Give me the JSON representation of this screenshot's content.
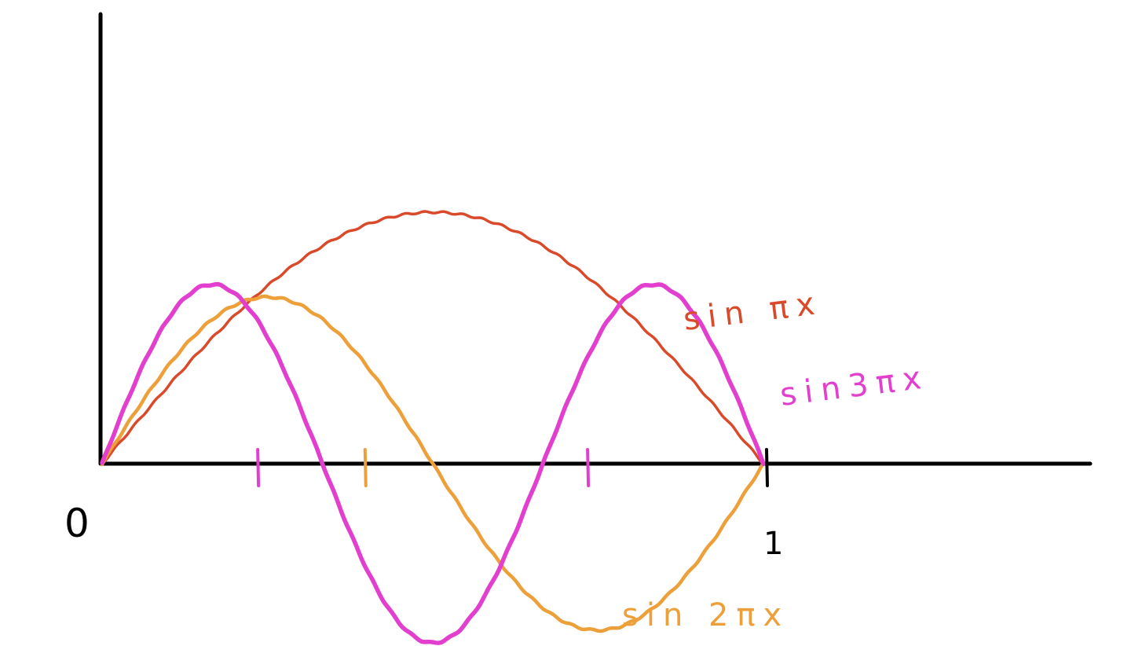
{
  "chart_data": {
    "type": "line",
    "title": "",
    "xlabel": "",
    "ylabel": "",
    "xlim": [
      0,
      1
    ],
    "ylim": [
      -1,
      1
    ],
    "grid": false,
    "legend": "inline labels at right of curves",
    "tick_labels": {
      "x_origin": "0",
      "x_end": "1"
    },
    "series": [
      {
        "name": "sin πx",
        "k": 1,
        "color": "#d94a2b",
        "x": [
          0,
          0.1,
          0.2,
          0.3,
          0.4,
          0.5,
          0.6,
          0.7,
          0.8,
          0.9,
          1.0
        ],
        "y": [
          0,
          0.31,
          0.59,
          0.81,
          0.95,
          1.0,
          0.95,
          0.81,
          0.59,
          0.31,
          0
        ]
      },
      {
        "name": "sin 2πx",
        "k": 2,
        "color": "#eda03a",
        "x": [
          0,
          0.1,
          0.2,
          0.3,
          0.4,
          0.5,
          0.6,
          0.7,
          0.8,
          0.9,
          1.0
        ],
        "y": [
          0,
          0.59,
          0.95,
          0.95,
          0.59,
          0,
          -0.59,
          -0.95,
          -0.95,
          -0.59,
          0
        ]
      },
      {
        "name": "sin3πx",
        "k": 3,
        "color": "#e23fcf",
        "x": [
          0,
          0.1,
          0.2,
          0.3,
          0.4,
          0.5,
          0.6,
          0.7,
          0.8,
          0.9,
          1.0
        ],
        "y": [
          0,
          0.81,
          0.95,
          0.31,
          -0.59,
          -1.0,
          -0.59,
          0.31,
          0.95,
          0.81,
          0
        ]
      }
    ],
    "zero_crossing_ticks": [
      {
        "x": 0.2353,
        "color": "#e23fcf"
      },
      {
        "x": 0.3976,
        "color": "#eda03a"
      },
      {
        "x": 0.7341,
        "color": "#e23fcf"
      },
      {
        "x": 1.0,
        "color": "#000000"
      }
    ]
  }
}
